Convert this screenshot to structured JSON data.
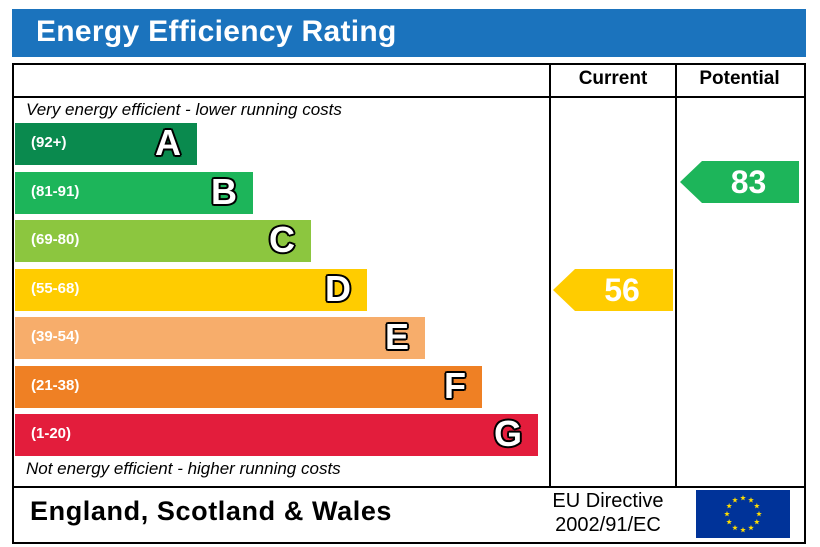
{
  "header": {
    "title": "Energy Efficiency Rating"
  },
  "columns": {
    "current": "Current",
    "potential": "Potential"
  },
  "captions": {
    "top": "Very energy efficient - lower running costs",
    "bottom": "Not energy efficient - higher running costs"
  },
  "footer": {
    "region": "England, Scotland & Wales",
    "directive_line1": "EU Directive",
    "directive_line2": "2002/91/EC"
  },
  "chart_data": {
    "type": "bar",
    "title": "Energy Efficiency Rating",
    "bands": [
      {
        "letter": "A",
        "range": "(92+)",
        "color": "#0a8a4e"
      },
      {
        "letter": "B",
        "range": "(81-91)",
        "color": "#1db55a"
      },
      {
        "letter": "C",
        "range": "(69-80)",
        "color": "#8cc63f"
      },
      {
        "letter": "D",
        "range": "(55-68)",
        "color": "#ffcc00"
      },
      {
        "letter": "E",
        "range": "(39-54)",
        "color": "#f7ad6b"
      },
      {
        "letter": "F",
        "range": "(21-38)",
        "color": "#ef8024"
      },
      {
        "letter": "G",
        "range": "(1-20)",
        "color": "#e31d3c"
      }
    ],
    "current": {
      "value": "56",
      "band": "D",
      "color": "#ffcc00"
    },
    "potential": {
      "value": "83",
      "band": "B",
      "color": "#1db55a"
    }
  },
  "eu_flag": {
    "icon": "eu-flag-icon",
    "background": "#003399",
    "stars": "#ffdd00"
  }
}
